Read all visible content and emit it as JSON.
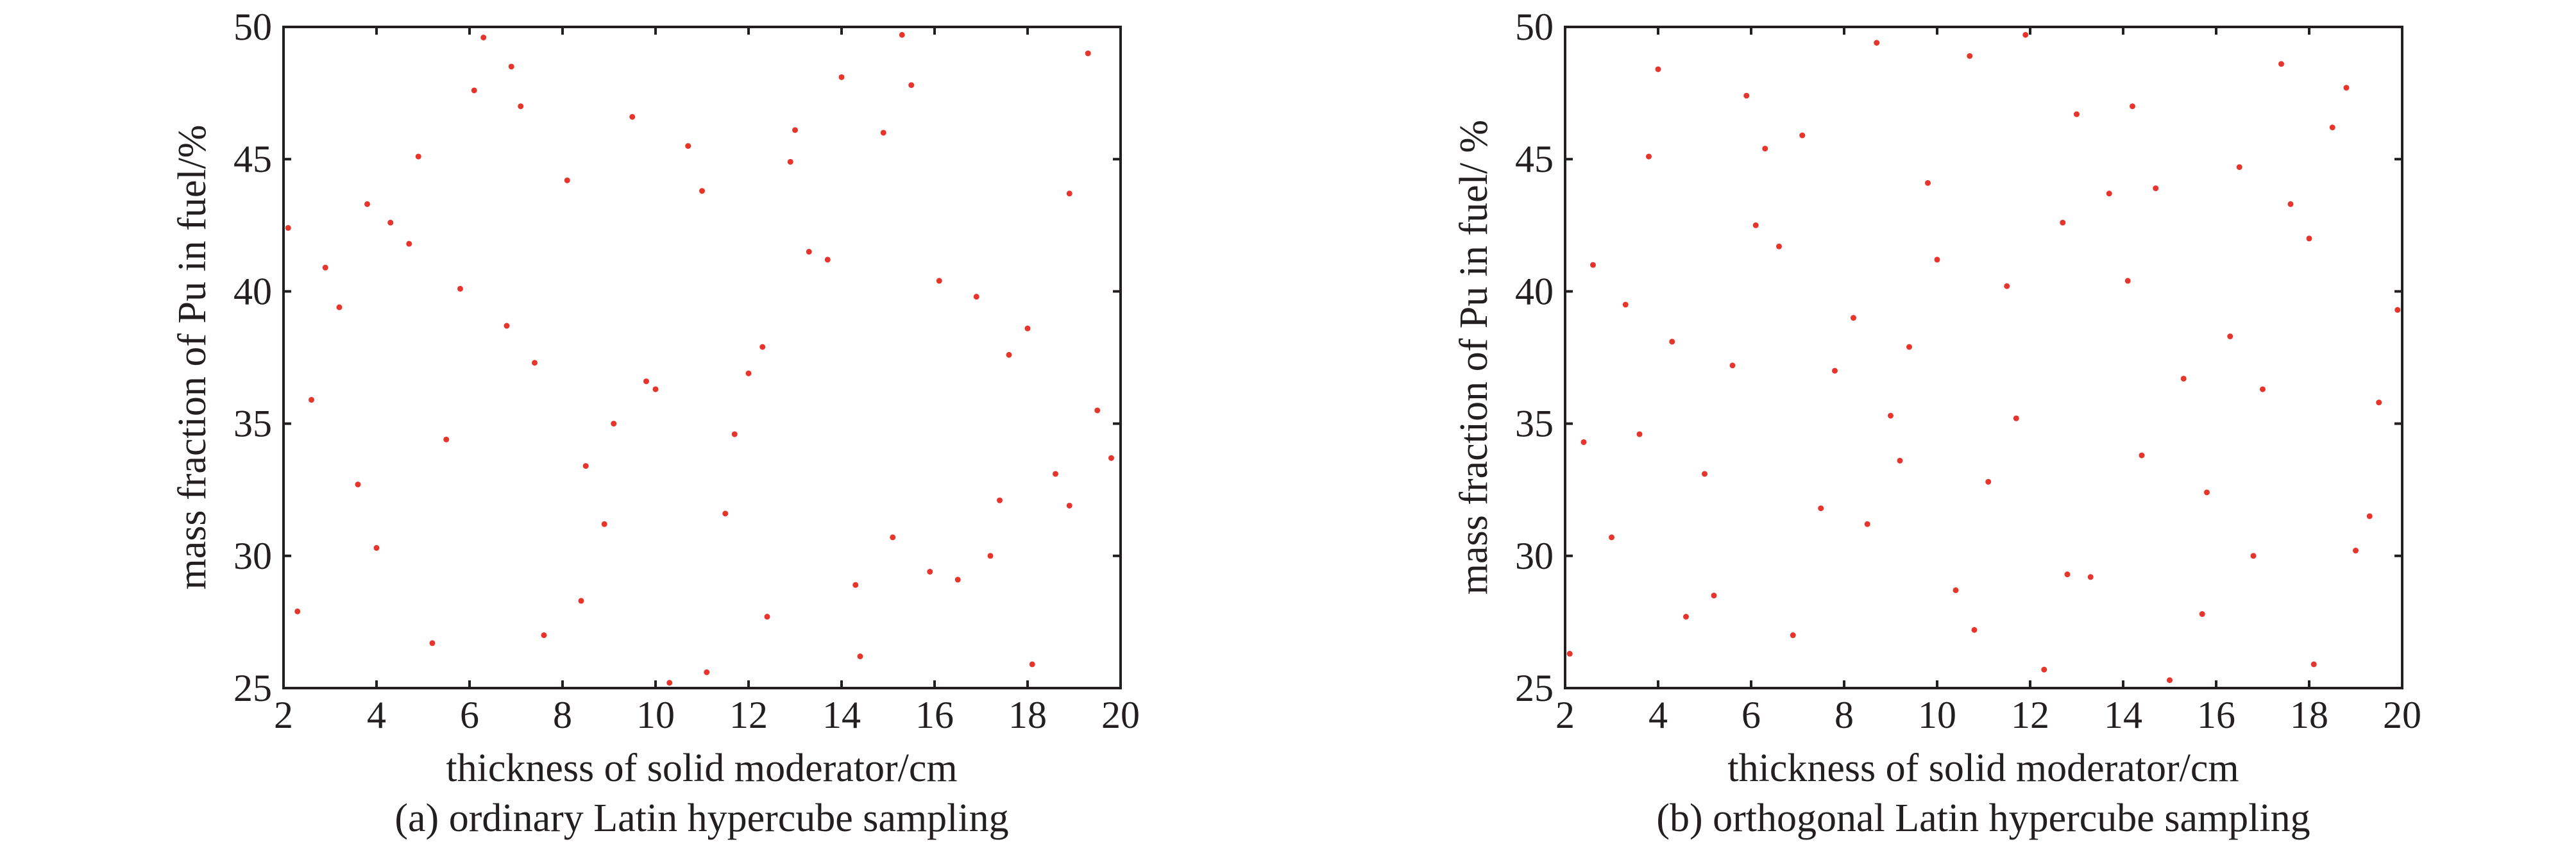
{
  "chart_data": [
    {
      "type": "scatter",
      "caption": "(a) ordinary Latin hypercube sampling",
      "xlabel": "thickness of solid moderator/cm",
      "ylabel": "mass fraction of Pu in fuel/%",
      "xlim": [
        2,
        20
      ],
      "ylim": [
        25,
        50
      ],
      "xticks": [
        "2",
        "4",
        "6",
        "8",
        "10",
        "12",
        "14",
        "16",
        "18",
        "20"
      ],
      "yticks": [
        "25",
        "30",
        "35",
        "40",
        "45",
        "50"
      ],
      "grid": false,
      "marker_color": "#e8352b",
      "points": [
        {
          "x": 2.1,
          "y": 42.4
        },
        {
          "x": 2.3,
          "y": 27.9
        },
        {
          "x": 2.6,
          "y": 35.9
        },
        {
          "x": 2.9,
          "y": 40.9
        },
        {
          "x": 3.2,
          "y": 39.4
        },
        {
          "x": 3.6,
          "y": 32.7
        },
        {
          "x": 3.8,
          "y": 43.3
        },
        {
          "x": 4.0,
          "y": 30.3
        },
        {
          "x": 4.3,
          "y": 42.6
        },
        {
          "x": 4.7,
          "y": 41.8
        },
        {
          "x": 4.9,
          "y": 45.1
        },
        {
          "x": 5.2,
          "y": 26.7
        },
        {
          "x": 5.5,
          "y": 34.4
        },
        {
          "x": 5.8,
          "y": 40.1
        },
        {
          "x": 6.1,
          "y": 47.6
        },
        {
          "x": 6.3,
          "y": 49.6
        },
        {
          "x": 6.8,
          "y": 38.7
        },
        {
          "x": 6.9,
          "y": 48.5
        },
        {
          "x": 7.1,
          "y": 47.0
        },
        {
          "x": 7.4,
          "y": 37.3
        },
        {
          "x": 7.6,
          "y": 27.0
        },
        {
          "x": 8.1,
          "y": 44.2
        },
        {
          "x": 8.4,
          "y": 28.3
        },
        {
          "x": 8.5,
          "y": 33.4
        },
        {
          "x": 8.9,
          "y": 31.2
        },
        {
          "x": 9.1,
          "y": 35.0
        },
        {
          "x": 9.5,
          "y": 46.6
        },
        {
          "x": 9.8,
          "y": 36.6
        },
        {
          "x": 10.0,
          "y": 36.3
        },
        {
          "x": 10.3,
          "y": 25.2
        },
        {
          "x": 10.7,
          "y": 45.5
        },
        {
          "x": 11.0,
          "y": 43.8
        },
        {
          "x": 11.1,
          "y": 25.6
        },
        {
          "x": 11.5,
          "y": 31.6
        },
        {
          "x": 11.7,
          "y": 34.6
        },
        {
          "x": 12.0,
          "y": 36.9
        },
        {
          "x": 12.3,
          "y": 37.9
        },
        {
          "x": 12.4,
          "y": 27.7
        },
        {
          "x": 12.9,
          "y": 44.9
        },
        {
          "x": 13.0,
          "y": 46.1
        },
        {
          "x": 13.3,
          "y": 41.5
        },
        {
          "x": 13.7,
          "y": 41.2
        },
        {
          "x": 14.0,
          "y": 48.1
        },
        {
          "x": 14.3,
          "y": 28.9
        },
        {
          "x": 14.4,
          "y": 26.2
        },
        {
          "x": 14.9,
          "y": 46.0
        },
        {
          "x": 15.1,
          "y": 30.7
        },
        {
          "x": 15.3,
          "y": 49.7
        },
        {
          "x": 15.5,
          "y": 47.8
        },
        {
          "x": 15.9,
          "y": 29.4
        },
        {
          "x": 16.1,
          "y": 40.4
        },
        {
          "x": 16.5,
          "y": 29.1
        },
        {
          "x": 16.9,
          "y": 39.8
        },
        {
          "x": 17.2,
          "y": 30.0
        },
        {
          "x": 17.4,
          "y": 32.1
        },
        {
          "x": 17.6,
          "y": 37.6
        },
        {
          "x": 18.0,
          "y": 38.6
        },
        {
          "x": 18.1,
          "y": 25.9
        },
        {
          "x": 18.6,
          "y": 33.1
        },
        {
          "x": 18.9,
          "y": 31.9
        },
        {
          "x": 18.9,
          "y": 43.7
        },
        {
          "x": 19.3,
          "y": 49.0
        },
        {
          "x": 19.5,
          "y": 35.5
        },
        {
          "x": 19.8,
          "y": 33.7
        }
      ]
    },
    {
      "type": "scatter",
      "caption": "(b) orthogonal Latin hypercube sampling",
      "xlabel": "thickness of solid moderator/cm",
      "ylabel": "mass fraction of Pu in fuel/ %",
      "xlim": [
        2,
        20
      ],
      "ylim": [
        25,
        50
      ],
      "xticks": [
        "2",
        "4",
        "6",
        "8",
        "10",
        "12",
        "14",
        "16",
        "18",
        "20"
      ],
      "yticks": [
        "25",
        "30",
        "35",
        "40",
        "45",
        "50"
      ],
      "grid": false,
      "marker_color": "#e8352b",
      "points": [
        {
          "x": 2.1,
          "y": 26.3
        },
        {
          "x": 2.4,
          "y": 34.3
        },
        {
          "x": 2.6,
          "y": 41.0
        },
        {
          "x": 3.0,
          "y": 30.7
        },
        {
          "x": 3.3,
          "y": 39.5
        },
        {
          "x": 3.6,
          "y": 34.6
        },
        {
          "x": 3.8,
          "y": 45.1
        },
        {
          "x": 4.0,
          "y": 48.4
        },
        {
          "x": 4.3,
          "y": 38.1
        },
        {
          "x": 4.6,
          "y": 27.7
        },
        {
          "x": 5.0,
          "y": 33.1
        },
        {
          "x": 5.2,
          "y": 28.5
        },
        {
          "x": 5.6,
          "y": 37.2
        },
        {
          "x": 5.9,
          "y": 47.4
        },
        {
          "x": 6.1,
          "y": 42.5
        },
        {
          "x": 6.3,
          "y": 45.4
        },
        {
          "x": 6.6,
          "y": 41.7
        },
        {
          "x": 6.9,
          "y": 27.0
        },
        {
          "x": 7.1,
          "y": 45.9
        },
        {
          "x": 7.5,
          "y": 31.8
        },
        {
          "x": 7.8,
          "y": 37.0
        },
        {
          "x": 8.2,
          "y": 39.0
        },
        {
          "x": 8.5,
          "y": 31.2
        },
        {
          "x": 8.7,
          "y": 49.4
        },
        {
          "x": 9.0,
          "y": 35.3
        },
        {
          "x": 9.2,
          "y": 33.6
        },
        {
          "x": 9.4,
          "y": 37.9
        },
        {
          "x": 9.8,
          "y": 44.1
        },
        {
          "x": 10.0,
          "y": 41.2
        },
        {
          "x": 10.4,
          "y": 28.7
        },
        {
          "x": 10.7,
          "y": 48.9
        },
        {
          "x": 10.8,
          "y": 27.2
        },
        {
          "x": 11.1,
          "y": 32.8
        },
        {
          "x": 11.5,
          "y": 40.2
        },
        {
          "x": 11.7,
          "y": 35.2
        },
        {
          "x": 11.9,
          "y": 49.7
        },
        {
          "x": 12.3,
          "y": 25.7
        },
        {
          "x": 12.7,
          "y": 42.6
        },
        {
          "x": 12.8,
          "y": 29.3
        },
        {
          "x": 13.0,
          "y": 46.7
        },
        {
          "x": 13.3,
          "y": 29.2
        },
        {
          "x": 13.7,
          "y": 43.7
        },
        {
          "x": 14.1,
          "y": 40.4
        },
        {
          "x": 14.2,
          "y": 47.0
        },
        {
          "x": 14.4,
          "y": 33.8
        },
        {
          "x": 14.7,
          "y": 43.9
        },
        {
          "x": 15.0,
          "y": 25.3
        },
        {
          "x": 15.3,
          "y": 36.7
        },
        {
          "x": 15.7,
          "y": 27.8
        },
        {
          "x": 15.8,
          "y": 32.4
        },
        {
          "x": 16.3,
          "y": 38.3
        },
        {
          "x": 16.5,
          "y": 44.7
        },
        {
          "x": 16.8,
          "y": 30.0
        },
        {
          "x": 17.0,
          "y": 36.3
        },
        {
          "x": 17.4,
          "y": 48.6
        },
        {
          "x": 17.6,
          "y": 43.3
        },
        {
          "x": 18.0,
          "y": 42.0
        },
        {
          "x": 18.1,
          "y": 25.9
        },
        {
          "x": 18.5,
          "y": 46.2
        },
        {
          "x": 18.8,
          "y": 47.7
        },
        {
          "x": 19.0,
          "y": 30.2
        },
        {
          "x": 19.3,
          "y": 31.5
        },
        {
          "x": 19.5,
          "y": 35.8
        },
        {
          "x": 19.9,
          "y": 39.3
        }
      ]
    }
  ]
}
